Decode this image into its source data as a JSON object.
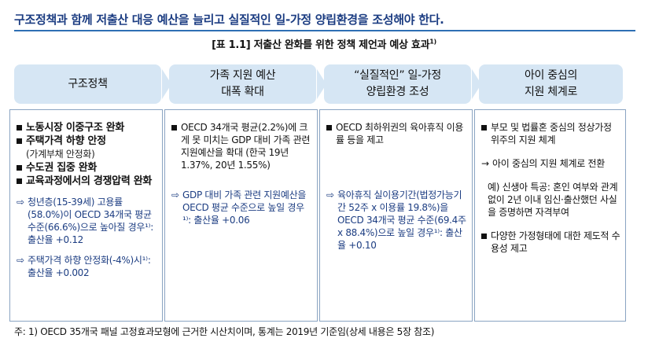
{
  "headline": "구조정책과 함께 저출산 대응 예산을 늘리고 실질적인 일-가정 양립환경을 조성해야 한다.",
  "table_title": "[표 1.1] 저출산 완화를 위한 정책 제언과 예상 효과",
  "table_title_sup": "1)",
  "columns": [
    {
      "header_l1": "구조정책",
      "header_l2": "",
      "bullets": [
        "노동시장 이중구조 완화",
        "주택가격 하향 안정",
        "수도권 집중 완화",
        "교육과정에서의 경쟁압력 완화"
      ],
      "bullet2_sub": "(가계부채 안정화)",
      "effect1": "청년층(15-39세) 고용률(58.0%)이 OECD 34개국 평균 수준(66.6%)으로 높아질 경우¹⁾: 출산율 +0.12",
      "effect2": "주택가격 하향 안정화(-4%)시¹⁾: 출산율 +0.002"
    },
    {
      "header_l1": "가족 지원 예산",
      "header_l2": "대폭 확대",
      "bullet": "OECD 34개국 평균(2.2%)에 크게 못 미치는 GDP 대비 가족 관련 지원예산을 확대 (한국 19년 1.37%, 20년 1.55%)",
      "effect": "GDP 대비 가족 관련 지원예산을 OECD 평균 수준으로 높일 경우¹⁾: 출산율 +0.06"
    },
    {
      "header_l1": "“실질적인” 일-가정",
      "header_l2": "양립환경 조성",
      "bullet": "OECD 최하위권의 육아휴직 이용률 등을 제고",
      "effect": "육아휴직 실이용기간(법정가능기간 52주 x 이용률 19.8%)을 OECD 34개국 평균 수준(69.4주 x 88.4%)으로 높일 경우¹⁾: 출산율 +0.10"
    },
    {
      "header_l1": "아이 중심의",
      "header_l2": "지원 체계로",
      "bullet1": "부모 및 법률혼 중심의 정상가정 위주의 지원 체계",
      "arrow_text": "아이 중심의 지원 체계로 전환",
      "example": "예) 신생아 특공: 혼인 여부와 관계없이 2년 이내 임신·출산했던 사실을 증명하면 자격부여",
      "bullet2": "다양한 가정형태에 대한 제도적 수용성 제고"
    }
  ],
  "footnote": "주: 1) OECD 35개국 패널 고정효과모형에 근거한 시산치이며, 통계는 2019년 기준임(상세 내용은 5장 참조)",
  "icons": {
    "effect_arrow": "⇨",
    "transition_arrow": "→"
  },
  "colors": {
    "headline": "#1c3d82",
    "header_fill": "#d6e6f4",
    "rule": "#2e6fb4"
  }
}
